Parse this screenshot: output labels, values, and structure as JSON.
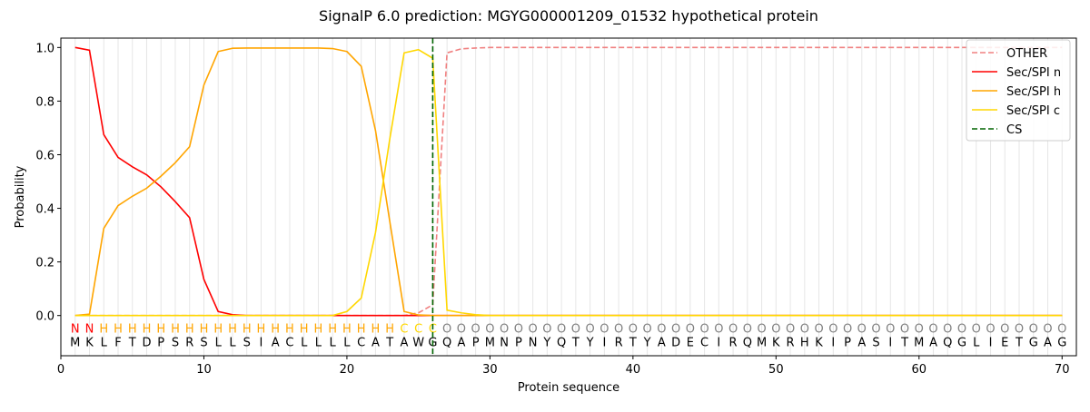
{
  "chart_data": {
    "type": "line",
    "title": "SignalP 6.0 prediction: MGYG000001209_01532 hypothetical protein",
    "xlabel": "Protein sequence",
    "ylabel": "Probability",
    "x": [
      1,
      2,
      3,
      4,
      5,
      6,
      7,
      8,
      9,
      10,
      11,
      12,
      13,
      14,
      15,
      16,
      17,
      18,
      19,
      20,
      21,
      22,
      23,
      24,
      25,
      26,
      27,
      28,
      29,
      30,
      31,
      32,
      33,
      34,
      35,
      36,
      37,
      38,
      39,
      40,
      41,
      42,
      43,
      44,
      45,
      46,
      47,
      48,
      49,
      50,
      51,
      52,
      53,
      54,
      55,
      56,
      57,
      58,
      59,
      60,
      61,
      62,
      63,
      64,
      65,
      66,
      67,
      68,
      69,
      70
    ],
    "residues": [
      "M",
      "K",
      "L",
      "F",
      "T",
      "D",
      "P",
      "S",
      "R",
      "S",
      "L",
      "L",
      "S",
      "I",
      "A",
      "C",
      "L",
      "L",
      "L",
      "L",
      "C",
      "A",
      "T",
      "A",
      "W",
      "G",
      "Q",
      "A",
      "P",
      "M",
      "N",
      "P",
      "N",
      "Y",
      "Q",
      "T",
      "Y",
      "I",
      "R",
      "T",
      "Y",
      "A",
      "D",
      "E",
      "C",
      "I",
      "R",
      "Q",
      "M",
      "K",
      "R",
      "H",
      "K",
      "I",
      "P",
      "A",
      "S",
      "I",
      "T",
      "M",
      "A",
      "Q",
      "G",
      "L",
      "I",
      "E",
      "T",
      "G",
      "A",
      "G"
    ],
    "labels": [
      "N",
      "N",
      "H",
      "H",
      "H",
      "H",
      "H",
      "H",
      "H",
      "H",
      "H",
      "H",
      "H",
      "H",
      "H",
      "H",
      "H",
      "H",
      "H",
      "H",
      "H",
      "H",
      "H",
      "C",
      "C",
      "C",
      "O",
      "O",
      "O",
      "O",
      "O",
      "O",
      "O",
      "O",
      "O",
      "O",
      "O",
      "O",
      "O",
      "O",
      "O",
      "O",
      "O",
      "O",
      "O",
      "O",
      "O",
      "O",
      "O",
      "O",
      "O",
      "O",
      "O",
      "O",
      "O",
      "O",
      "O",
      "O",
      "O",
      "O",
      "O",
      "O",
      "O",
      "O",
      "O",
      "O",
      "O",
      "O",
      "O",
      "O"
    ],
    "label_colors": {
      "N": "red",
      "H": "orange",
      "C": "gold",
      "O": "gray"
    },
    "series": [
      {
        "name": "OTHER",
        "color": "#f08080",
        "dashed": true,
        "values": [
          0,
          0,
          0,
          0,
          0,
          0,
          0,
          0,
          0,
          0,
          0,
          0,
          0,
          0,
          0,
          0,
          0,
          0,
          0,
          0,
          0,
          0,
          0,
          0,
          0.01,
          0.04,
          0.98,
          0.995,
          0.998,
          1,
          1,
          1,
          1,
          1,
          1,
          1,
          1,
          1,
          1,
          1,
          1,
          1,
          1,
          1,
          1,
          1,
          1,
          1,
          1,
          1,
          1,
          1,
          1,
          1,
          1,
          1,
          1,
          1,
          1,
          1,
          1,
          1,
          1,
          1,
          1,
          1,
          1,
          1,
          1,
          1
        ]
      },
      {
        "name": "Sec/SPI n",
        "color": "red",
        "values": [
          1.0,
          0.99,
          0.675,
          0.59,
          0.555,
          0.525,
          0.48,
          0.425,
          0.365,
          0.135,
          0.015,
          0.003,
          0,
          0,
          0,
          0,
          0,
          0,
          0,
          0,
          0,
          0,
          0,
          0,
          0,
          0,
          0,
          0,
          0,
          0,
          0,
          0,
          0,
          0,
          0,
          0,
          0,
          0,
          0,
          0,
          0,
          0,
          0,
          0,
          0,
          0,
          0,
          0,
          0,
          0,
          0,
          0,
          0,
          0,
          0,
          0,
          0,
          0,
          0,
          0,
          0,
          0,
          0,
          0,
          0,
          0,
          0,
          0,
          0,
          0
        ]
      },
      {
        "name": "Sec/SPI h",
        "color": "orange",
        "values": [
          0,
          0.005,
          0.325,
          0.41,
          0.445,
          0.475,
          0.52,
          0.57,
          0.63,
          0.86,
          0.985,
          0.997,
          0.998,
          0.998,
          0.998,
          0.998,
          0.998,
          0.998,
          0.996,
          0.985,
          0.93,
          0.69,
          0.35,
          0.015,
          0.002,
          0,
          0,
          0,
          0,
          0,
          0,
          0,
          0,
          0,
          0,
          0,
          0,
          0,
          0,
          0,
          0,
          0,
          0,
          0,
          0,
          0,
          0,
          0,
          0,
          0,
          0,
          0,
          0,
          0,
          0,
          0,
          0,
          0,
          0,
          0,
          0,
          0,
          0,
          0,
          0,
          0,
          0,
          0,
          0,
          0
        ]
      },
      {
        "name": "Sec/SPI c",
        "color": "gold",
        "values": [
          0,
          0,
          0,
          0,
          0,
          0,
          0,
          0,
          0,
          0,
          0,
          0,
          0,
          0,
          0,
          0,
          0,
          0,
          0,
          0.015,
          0.065,
          0.31,
          0.66,
          0.98,
          0.992,
          0.96,
          0.02,
          0.01,
          0.003,
          0,
          0,
          0,
          0,
          0,
          0,
          0,
          0,
          0,
          0,
          0,
          0,
          0,
          0,
          0,
          0,
          0,
          0,
          0,
          0,
          0,
          0,
          0,
          0,
          0,
          0,
          0,
          0,
          0,
          0,
          0,
          0,
          0,
          0,
          0,
          0,
          0,
          0,
          0,
          0,
          0
        ]
      }
    ],
    "cs": {
      "name": "CS",
      "x": 26,
      "color": "darkgreen"
    },
    "xlim": [
      0,
      71
    ],
    "ylim": [
      -0.15,
      1.035
    ],
    "xticks": [
      0,
      10,
      20,
      30,
      40,
      50,
      60,
      70
    ],
    "yticks": [
      {
        "value": 0,
        "label": "0.0"
      },
      {
        "value": 0.2,
        "label": "0.2"
      },
      {
        "value": 0.4,
        "label": "0.4"
      },
      {
        "value": 0.6,
        "label": "0.6"
      },
      {
        "value": 0.8,
        "label": "0.8"
      },
      {
        "value": 1.0,
        "label": "1.0"
      }
    ],
    "grid": true,
    "legend": "upper right"
  }
}
